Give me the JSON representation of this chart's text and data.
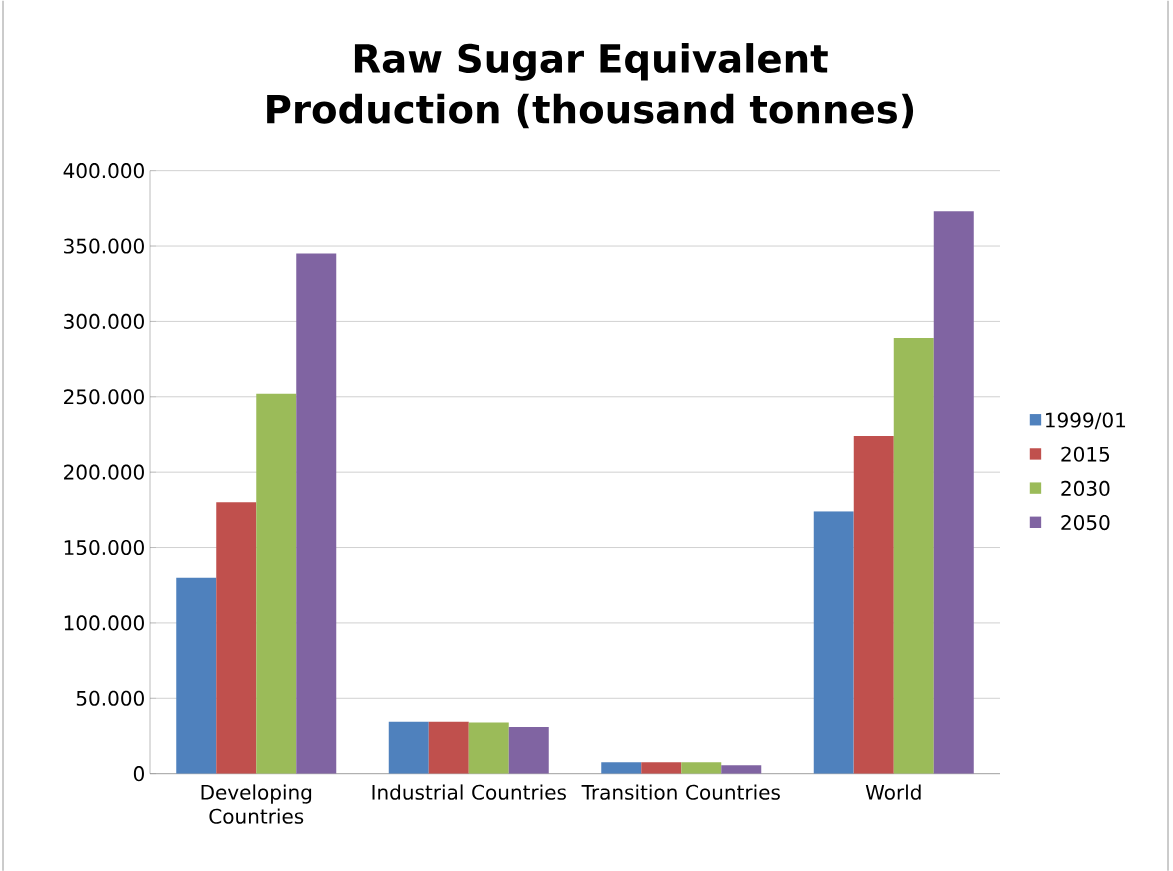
{
  "chart_data": {
    "type": "bar",
    "title": "Raw Sugar Equivalent Production (thousand tonnes)",
    "categories": [
      "Developing Countries",
      "Industrial Countries",
      "Transition Countries",
      "World"
    ],
    "series": [
      {
        "name": "1999/01",
        "color": "#4f81bd",
        "values": [
          130000,
          34500,
          7500,
          174000
        ]
      },
      {
        "name": "2015",
        "color": "#c0504d",
        "values": [
          180000,
          34500,
          7500,
          224000
        ]
      },
      {
        "name": "2030",
        "color": "#9bbb59",
        "values": [
          252000,
          34000,
          7500,
          289000
        ]
      },
      {
        "name": "2050",
        "color": "#8064a2",
        "values": [
          345000,
          31000,
          5500,
          373000
        ]
      }
    ],
    "ylim": [
      0,
      400000
    ],
    "yticks": [
      {
        "value": 0,
        "label": "0"
      },
      {
        "value": 50000,
        "label": "50.000"
      },
      {
        "value": 100000,
        "label": "100.000"
      },
      {
        "value": 150000,
        "label": "150.000"
      },
      {
        "value": 200000,
        "label": "200.000"
      },
      {
        "value": 250000,
        "label": "250.000"
      },
      {
        "value": 300000,
        "label": "300.000"
      },
      {
        "value": 350000,
        "label": "350.000"
      },
      {
        "value": 400000,
        "label": "400.000"
      }
    ],
    "grid": "y",
    "legend": "right"
  }
}
